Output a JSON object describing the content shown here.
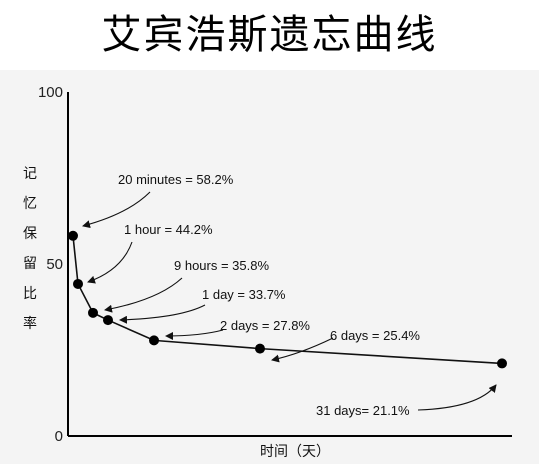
{
  "chart_data": {
    "type": "line",
    "title": "艾宾浩斯遗忘曲线",
    "xlabel": "时间（天）",
    "ylabel": [
      "记",
      "忆",
      "保",
      "留",
      "比",
      "率"
    ],
    "ylim": [
      0,
      100
    ],
    "yticks": [
      "0",
      "50",
      "100"
    ],
    "xlim": [
      0,
      33
    ],
    "series": [
      {
        "values": [
          {
            "x": 0.0139,
            "y": 58.2
          },
          {
            "x": 0.0417,
            "y": 44.2
          },
          {
            "x": 0.375,
            "y": 35.8
          },
          {
            "x": 1,
            "y": 33.7
          },
          {
            "x": 2,
            "y": 27.8
          },
          {
            "x": 6,
            "y": 25.4
          },
          {
            "x": 31,
            "y": 21.1
          }
        ]
      }
    ],
    "annotations": [
      "20 minutes = 58.2%",
      "1 hour = 44.2%",
      "9 hours = 35.8%",
      "1 day = 33.7%",
      "2 days = 27.8%",
      "6 days = 25.4%",
      "31 days= 21.1%"
    ],
    "grid": false,
    "legend": "none"
  }
}
